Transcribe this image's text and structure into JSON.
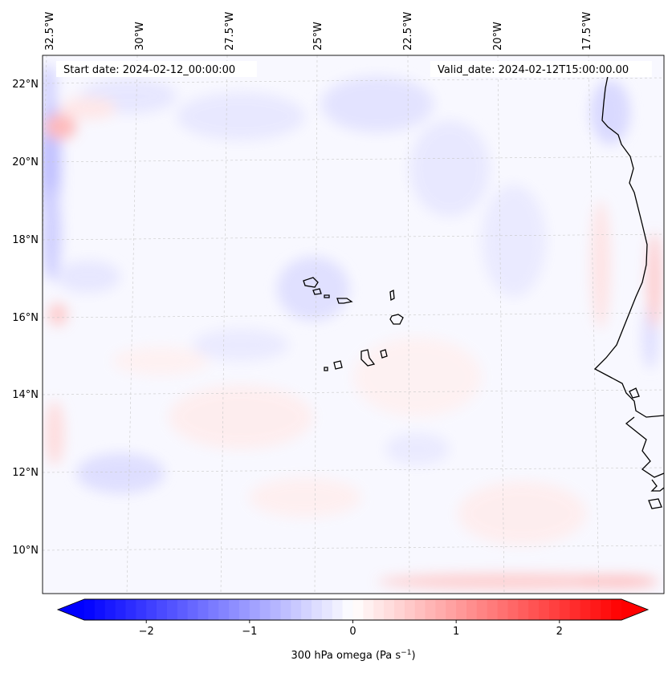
{
  "map": {
    "start_date": "Start date: 2024-02-12_00:00:00",
    "valid_date": "Valid_date: 2024-02-12T15:00:00.00",
    "colorbar_label": "300 hPa omega (Pa s",
    "colorbar_label_exp": "−1",
    "colorbar_label_close": ")",
    "lon_labels": [
      "32.5°W",
      "30°W",
      "27.5°W",
      "25°W",
      "22.5°W",
      "20°W",
      "17.5°W"
    ],
    "lat_labels": [
      "22°N",
      "20°N",
      "18°N",
      "16°N",
      "14°N",
      "12°N",
      "10°N"
    ],
    "colorbar_ticks": [
      "−2",
      "−1",
      "0",
      "1",
      "2"
    ],
    "colormap": {
      "low": "#0000ff",
      "mid": "#ffffff",
      "high": "#ff0000"
    },
    "colorbar_range": [
      -2.6,
      2.6
    ],
    "colorbar_tick_values": [
      -2,
      -1,
      0,
      1,
      2
    ]
  }
}
